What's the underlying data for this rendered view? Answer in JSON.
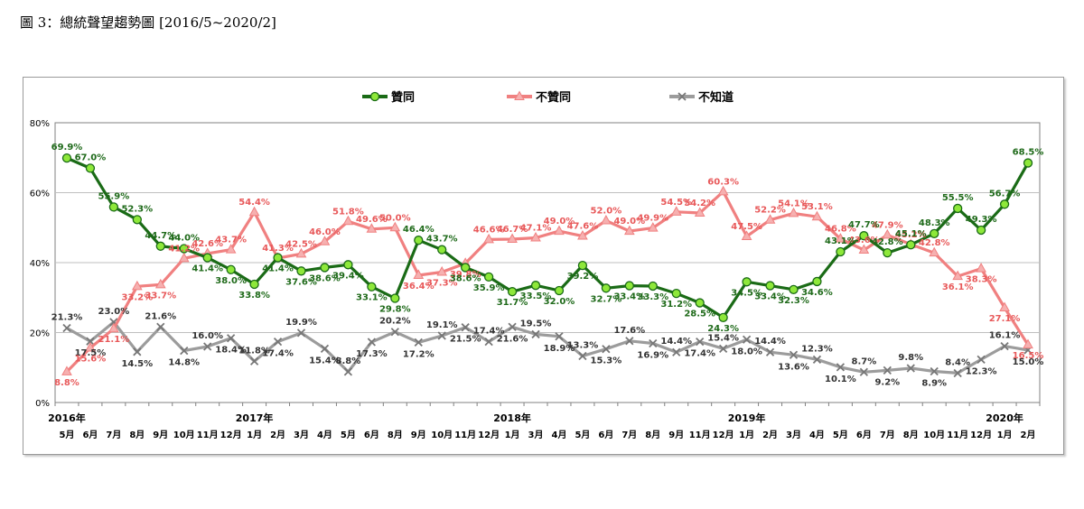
{
  "title": "圖 3：總統聲望趨勢圖  [2016/5~2020/2]",
  "chart_data": {
    "type": "line",
    "title": "圖 3：總統聲望趨勢圖  [2016/5~2020/2]",
    "ylim": [
      0,
      80
    ],
    "y_ticks": [
      "0%",
      "20%",
      "40%",
      "60%",
      "80%"
    ],
    "legend_position": "top",
    "grid": true,
    "x": [
      "5月",
      "6月",
      "7月",
      "8月",
      "9月",
      "10月",
      "11月",
      "12月",
      "1月",
      "2月",
      "3月",
      "4月",
      "5月",
      "6月",
      "8月",
      "9月",
      "10月",
      "11月",
      "12月",
      "1月",
      "3月",
      "4月",
      "5月",
      "6月",
      "7月",
      "8月",
      "9月",
      "11月",
      "12月",
      "1月",
      "2月",
      "3月",
      "4月",
      "5月",
      "6月",
      "7月",
      "8月",
      "10月",
      "11月",
      "12月",
      "1月",
      "2月"
    ],
    "year_labels": [
      {
        "label": "2016年",
        "index": 0
      },
      {
        "label": "2017年",
        "index": 8
      },
      {
        "label": "2018年",
        "index": 19
      },
      {
        "label": "2019年",
        "index": 29
      },
      {
        "label": "2020年",
        "index": 40
      }
    ],
    "series": [
      {
        "name": "贊同",
        "color": "#1a6b16",
        "marker_color": "#8ee83a",
        "marker": "circle",
        "values": [
          69.9,
          67.0,
          55.9,
          52.3,
          44.7,
          44.0,
          41.4,
          38.0,
          33.8,
          41.4,
          37.6,
          38.6,
          39.4,
          33.1,
          29.8,
          46.4,
          43.7,
          38.6,
          35.9,
          31.7,
          33.5,
          32.0,
          39.2,
          32.7,
          33.4,
          33.3,
          31.2,
          28.5,
          24.3,
          34.5,
          33.4,
          32.3,
          34.6,
          43.1,
          47.7,
          42.8,
          45.1,
          48.3,
          55.5,
          49.3,
          56.7,
          68.5
        ],
        "labels": [
          "69.9%",
          "67.0%",
          "55.9%",
          "52.3%",
          "44.7%",
          "44.0%",
          "41.4%",
          "38.0%",
          "33.8%",
          "41.4%",
          "37.6%",
          "38.6%",
          "39.4%",
          "33.1%",
          "29.8%",
          "46.4%",
          "43.7%",
          "38.6%",
          "35.9%",
          "31.7%",
          "33.5%",
          "32.0%",
          "39.2%",
          "32.7%",
          "33.4%",
          "33.3%",
          "31.2%",
          "28.5%",
          "24.3%",
          "34.5%",
          "33.4%",
          "32.3%",
          "34.6%",
          "43.1%",
          "47.7%",
          "42.8%",
          "45.1%",
          "48.3%",
          "55.5%",
          "49.3%",
          "56.7%",
          "68.5%"
        ]
      },
      {
        "name": "不贊同",
        "color": "#f08080",
        "marker_color": "#f6b0b0",
        "marker": "triangle",
        "values": [
          8.8,
          15.6,
          21.1,
          33.2,
          33.7,
          41.2,
          42.6,
          43.7,
          54.4,
          41.3,
          42.5,
          46.0,
          51.8,
          49.6,
          50.0,
          36.4,
          37.3,
          39.8,
          46.6,
          46.7,
          47.1,
          49.0,
          47.6,
          52.0,
          49.0,
          49.9,
          54.5,
          54.2,
          60.3,
          47.5,
          52.2,
          54.1,
          53.1,
          46.8,
          43.6,
          47.9,
          45.2,
          42.8,
          36.1,
          38.3,
          27.1,
          16.5
        ],
        "labels": [
          "8.8%",
          "15.6%",
          "21.1%",
          "33.2%",
          "33.7%",
          "41.2%",
          "42.6%",
          "43.7%",
          "54.4%",
          "41.3%",
          "42.5%",
          "46.0%",
          "51.8%",
          "49.6%",
          "50.0%",
          "36.4%",
          "37.3%",
          "39.8%",
          "46.6%",
          "46.7%",
          "47.1%",
          "49.0%",
          "47.6%",
          "52.0%",
          "49.0%",
          "49.9%",
          "54.5%",
          "54.2%",
          "60.3%",
          "47.5%",
          "52.2%",
          "54.1%",
          "53.1%",
          "46.8%",
          "43.6%",
          "47.9%",
          "45.2%",
          "42.8%",
          "36.1%",
          "38.3%",
          "27.1%",
          "16.5%"
        ]
      },
      {
        "name": "不知道",
        "color": "#9c9c9c",
        "marker_color": "#bdbdbd",
        "marker": "x",
        "values": [
          21.3,
          17.5,
          23.0,
          14.5,
          21.6,
          14.8,
          16.0,
          18.4,
          11.8,
          17.4,
          19.9,
          15.4,
          8.8,
          17.3,
          20.2,
          17.2,
          19.1,
          21.5,
          17.4,
          21.6,
          19.5,
          18.9,
          13.3,
          15.3,
          17.6,
          16.9,
          14.4,
          17.4,
          15.4,
          18.0,
          14.4,
          13.6,
          12.3,
          10.1,
          8.7,
          9.2,
          9.8,
          8.9,
          8.4,
          12.3,
          16.1,
          15.0
        ],
        "labels": [
          "21.3%",
          "17.5%",
          "23.0%",
          "14.5%",
          "21.6%",
          "14.8%",
          "16.0%",
          "18.4%",
          "11.8%",
          "17.4%",
          "19.9%",
          "15.4%",
          "8.8%",
          "17.3%",
          "20.2%",
          "17.2%",
          "19.1%",
          "21.5%",
          "17.4%",
          "21.6%",
          "19.5%",
          "18.9%",
          "13.3%",
          "15.3%",
          "17.6%",
          "16.9%",
          "14.4%",
          "17.4%",
          "15.4%",
          "18.0%",
          "14.4%",
          "13.6%",
          "12.3%",
          "10.1%",
          "8.7%",
          "9.2%",
          "9.8%",
          "8.9%",
          "8.4%",
          "12.3%",
          "16.1%",
          "15.0%"
        ]
      }
    ]
  }
}
